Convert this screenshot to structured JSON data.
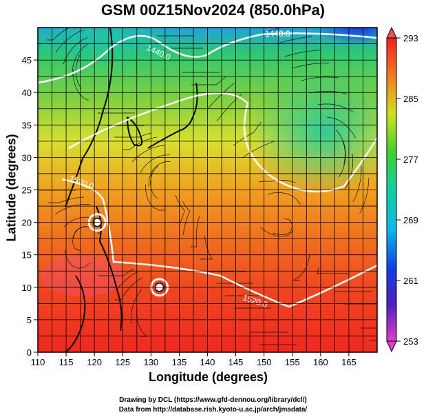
{
  "title": "GSM 00Z15Nov2024 (850.0hPa)",
  "xaxis": {
    "label": "Longitude (degrees)",
    "range": [
      110,
      170
    ],
    "ticks": [
      110,
      115,
      120,
      125,
      130,
      135,
      140,
      145,
      150,
      155,
      160,
      165
    ]
  },
  "yaxis": {
    "label": "Latitude  (degrees)",
    "range": [
      0,
      50
    ],
    "ticks": [
      0,
      5,
      10,
      15,
      20,
      25,
      30,
      35,
      40,
      45
    ]
  },
  "colorbar": {
    "ticks": [
      293,
      285,
      277,
      269,
      261,
      253
    ],
    "range": [
      253,
      293
    ]
  },
  "contours": [
    {
      "label": "1440.0"
    },
    {
      "label": "1440.0"
    },
    {
      "label": "1520.0"
    },
    {
      "label": "1520.0"
    }
  ],
  "typhoons": [
    {
      "lon": 120.5,
      "lat": 20.0
    },
    {
      "lon": 131.5,
      "lat": 10.0
    }
  ],
  "credits": {
    "line1": "Drawing by DCL (https://www.gfd-dennou.org/library/dcl/)",
    "line2": "Data from http://database.rish.kyoto-u.ac.jp/arch/jmadata/"
  }
}
